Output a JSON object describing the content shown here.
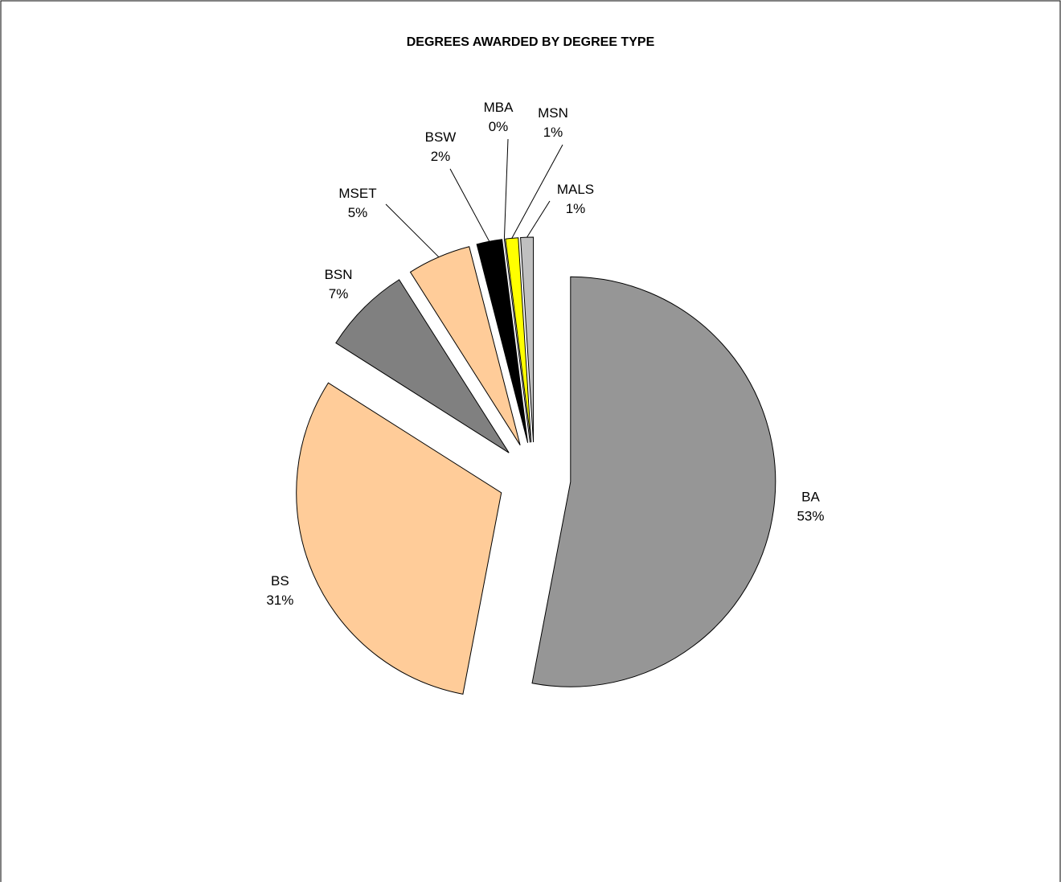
{
  "chart_data": {
    "type": "pie",
    "title": "DEGREES AWARDED BY DEGREE TYPE",
    "categories": [
      "BA",
      "BS",
      "BSN",
      "MSET",
      "BSW",
      "MBA",
      "MSN",
      "MALS"
    ],
    "values": [
      53,
      31,
      7,
      5,
      2,
      0,
      1,
      1
    ],
    "value_labels": [
      "53%",
      "31%",
      "7%",
      "5%",
      "2%",
      "0%",
      "1%",
      "1%"
    ],
    "colors": [
      "#969696",
      "#ffcc99",
      "#808080",
      "#ffcc99",
      "#000000",
      "#ff9999",
      "#ffff00",
      "#c0c0c0"
    ]
  }
}
